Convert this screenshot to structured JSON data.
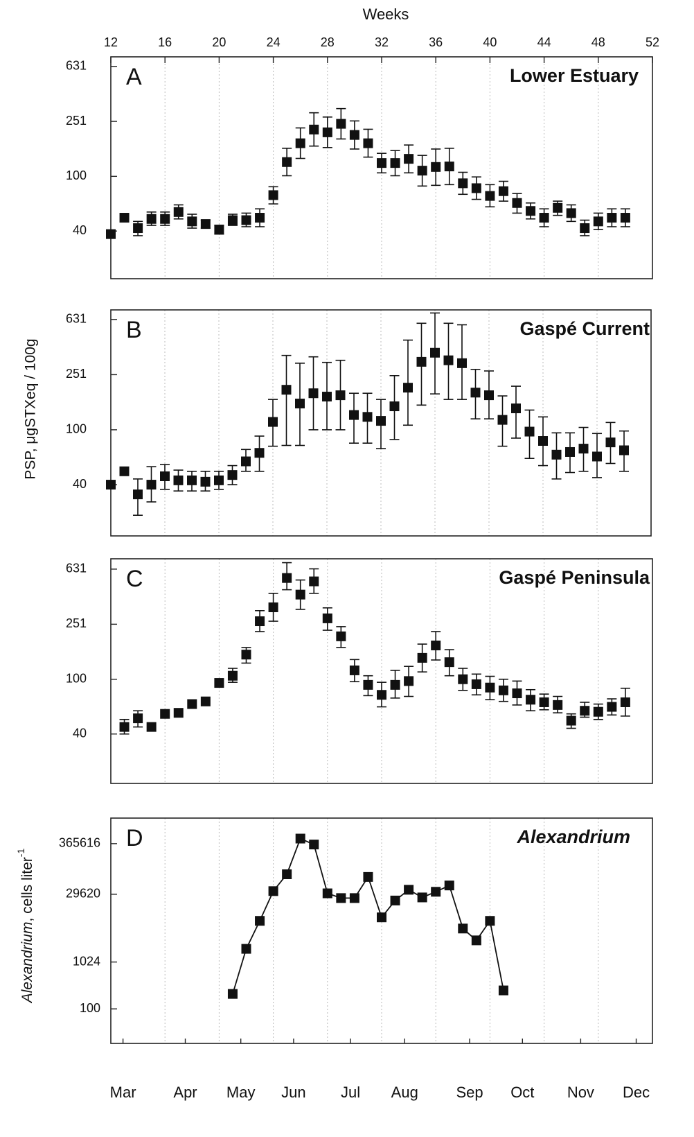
{
  "chart_data": [
    {
      "type": "scatter",
      "letter": "A",
      "title": "Lower Estuary",
      "xlabel": "Weeks",
      "xlim": [
        12,
        52
      ],
      "xticks": [
        12,
        16,
        20,
        24,
        28,
        32,
        36,
        40,
        44,
        48,
        52
      ],
      "ylim": [
        18,
        740
      ],
      "yticks": [
        40,
        100,
        251,
        631
      ],
      "log_y": true,
      "grid": "x",
      "color": "#111111",
      "x": [
        12,
        13,
        14,
        15,
        16,
        17,
        18,
        19,
        20,
        21,
        22,
        23,
        24,
        25,
        26,
        27,
        28,
        29,
        30,
        31,
        32,
        33,
        34,
        35,
        36,
        37,
        38,
        39,
        40,
        41,
        42,
        43,
        44,
        45,
        46,
        47,
        48,
        49,
        50
      ],
      "values": [
        38,
        50,
        42,
        49,
        49,
        55,
        47,
        45,
        41,
        48,
        48,
        50,
        73,
        127,
        174,
        219,
        209,
        241,
        200,
        174,
        125,
        125,
        134,
        110,
        117,
        118,
        89,
        82,
        72,
        78,
        64,
        56,
        50,
        59,
        54,
        42,
        47,
        50,
        50
      ],
      "error_low": [
        null,
        null,
        37,
        44,
        44,
        49,
        42,
        42,
        38,
        44,
        43,
        43,
        63,
        101,
        135,
        166,
        162,
        187,
        158,
        138,
        106,
        101,
        106,
        85,
        86,
        87,
        74,
        68,
        60,
        66,
        54,
        49,
        43,
        52,
        47,
        37,
        41,
        43,
        43
      ],
      "error_high": [
        null,
        null,
        47,
        55,
        55,
        62,
        53,
        48,
        44,
        53,
        54,
        58,
        84,
        160,
        225,
        290,
        270,
        311,
        253,
        220,
        147,
        154,
        169,
        142,
        158,
        160,
        107,
        99,
        87,
        92,
        75,
        64,
        58,
        66,
        62,
        48,
        54,
        58,
        58
      ]
    },
    {
      "type": "scatter",
      "letter": "B",
      "title": "Gaspé Current",
      "ylabel": "PSP, μgSTXeq / 100g",
      "xlim": [
        12,
        52
      ],
      "ylim": [
        17,
        740
      ],
      "yticks": [
        40,
        100,
        251,
        631
      ],
      "log_y": true,
      "grid": "x",
      "color": "#111111",
      "x": [
        12,
        13,
        14,
        15,
        16,
        17,
        18,
        19,
        20,
        21,
        22,
        23,
        24,
        25,
        26,
        27,
        28,
        29,
        30,
        31,
        32,
        33,
        34,
        35,
        36,
        37,
        38,
        39,
        40,
        41,
        42,
        43,
        44,
        45,
        46,
        47,
        48,
        49,
        50
      ],
      "values": [
        40,
        50,
        34,
        40,
        46,
        43,
        43,
        42,
        43,
        47,
        59,
        68,
        114,
        195,
        155,
        184,
        174,
        178,
        128,
        124,
        116,
        148,
        202,
        311,
        362,
        319,
        304,
        186,
        178,
        118,
        143,
        97,
        83,
        66,
        69,
        73,
        64,
        81,
        71
      ],
      "error_low": [
        null,
        null,
        24,
        30,
        37,
        36,
        36,
        36,
        37,
        40,
        50,
        50,
        76,
        77,
        77,
        100,
        100,
        100,
        80,
        80,
        73,
        85,
        108,
        151,
        182,
        166,
        166,
        120,
        120,
        76,
        87,
        62,
        55,
        44,
        49,
        50,
        45,
        57,
        50
      ],
      "error_high": [
        null,
        null,
        44,
        54,
        56,
        51,
        50,
        50,
        50,
        55,
        72,
        90,
        166,
        346,
        304,
        338,
        308,
        319,
        184,
        184,
        166,
        247,
        447,
        592,
        703,
        592,
        577,
        274,
        267,
        176,
        207,
        139,
        124,
        95,
        95,
        104,
        94,
        113,
        98
      ]
    },
    {
      "type": "scatter",
      "letter": "C",
      "title": "Gaspé Peninsula",
      "xlim": [
        12,
        52
      ],
      "ylim": [
        17.5,
        750
      ],
      "yticks": [
        40,
        100,
        251,
        631
      ],
      "log_y": true,
      "grid": "x",
      "color": "#111111",
      "x": [
        13,
        14,
        15,
        16,
        17,
        18,
        19,
        20,
        21,
        22,
        23,
        24,
        25,
        26,
        27,
        28,
        29,
        30,
        31,
        32,
        33,
        34,
        35,
        36,
        37,
        38,
        39,
        40,
        41,
        42,
        43,
        44,
        45,
        46,
        47,
        48,
        49,
        50
      ],
      "values": [
        45,
        52,
        45,
        56,
        57,
        66,
        69,
        94,
        106,
        151,
        264,
        333,
        544,
        412,
        514,
        277,
        205,
        116,
        91,
        77,
        91,
        97,
        143,
        176,
        133,
        100,
        92,
        87,
        83,
        79,
        71,
        68,
        65,
        50,
        59,
        58,
        63,
        68
      ],
      "error_low": [
        40,
        45,
        null,
        null,
        null,
        null,
        null,
        null,
        95,
        131,
        222,
        264,
        447,
        322,
        421,
        227,
        170,
        96,
        76,
        63,
        73,
        75,
        113,
        138,
        106,
        83,
        77,
        71,
        69,
        65,
        59,
        60,
        57,
        44,
        53,
        51,
        55,
        54
      ],
      "error_high": [
        51,
        59,
        null,
        null,
        null,
        null,
        null,
        null,
        120,
        170,
        315,
        421,
        703,
        526,
        634,
        330,
        241,
        139,
        106,
        95,
        116,
        124,
        180,
        222,
        164,
        120,
        109,
        105,
        100,
        97,
        84,
        78,
        75,
        56,
        68,
        66,
        72,
        86
      ]
    },
    {
      "type": "line",
      "letter": "D",
      "title": "Alexandrium",
      "ylabel_italic": "Alexandrium",
      "ylabel": ", cells liter",
      "ylabel_sup": "-1",
      "xlim": [
        12,
        52
      ],
      "ylim": [
        18,
        1300000
      ],
      "yticks": [
        100,
        1024,
        29620,
        365616
      ],
      "log_y": true,
      "grid": "x",
      "color": "#111111",
      "x2ticks": [
        {
          "value": 12.9,
          "label": "Mar"
        },
        {
          "value": 17.5,
          "label": "Apr"
        },
        {
          "value": 21.6,
          "label": "May"
        },
        {
          "value": 25.5,
          "label": "Jun"
        },
        {
          "value": 29.7,
          "label": "Jul"
        },
        {
          "value": 33.7,
          "label": "Aug"
        },
        {
          "value": 38.5,
          "label": "Sep"
        },
        {
          "value": 42.4,
          "label": "Oct"
        },
        {
          "value": 46.7,
          "label": "Nov"
        },
        {
          "value": 50.8,
          "label": "Dec"
        }
      ],
      "x": [
        21,
        22,
        23,
        24,
        25,
        26,
        27,
        28,
        29,
        30,
        31,
        32,
        33,
        34,
        35,
        36,
        37,
        38,
        39,
        40,
        41
      ],
      "values": [
        210,
        1970,
        7900,
        34600,
        80000,
        470000,
        350000,
        31000,
        24500,
        24500,
        70000,
        9400,
        21700,
        37000,
        25300,
        33500,
        45800,
        5400,
        3000,
        7900,
        250
      ]
    }
  ]
}
